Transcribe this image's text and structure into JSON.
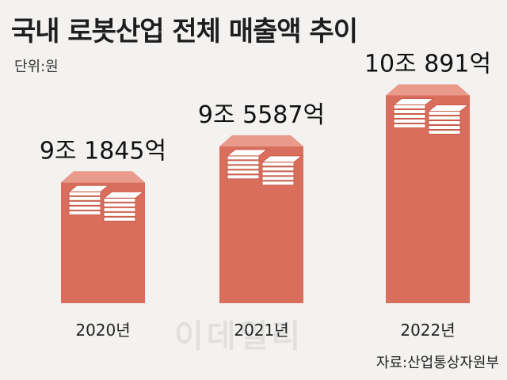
{
  "chart_data": {
    "type": "bar",
    "title": "국내 로봇산업 전체 매출액 추이",
    "unit_label": "단위:원",
    "categories": [
      "2020년",
      "2021년",
      "2022년"
    ],
    "values": [
      91845,
      95587,
      100891
    ],
    "value_unit": "억원",
    "value_labels": [
      "9조 1845억",
      "9조 5587억",
      "10조 891억"
    ],
    "source": "자료:산업통상자원부",
    "watermark": "이데일리",
    "bar_color": "#d96e5c",
    "bar_top_color": "#e99a8a",
    "axis_line": false,
    "grid": false
  }
}
